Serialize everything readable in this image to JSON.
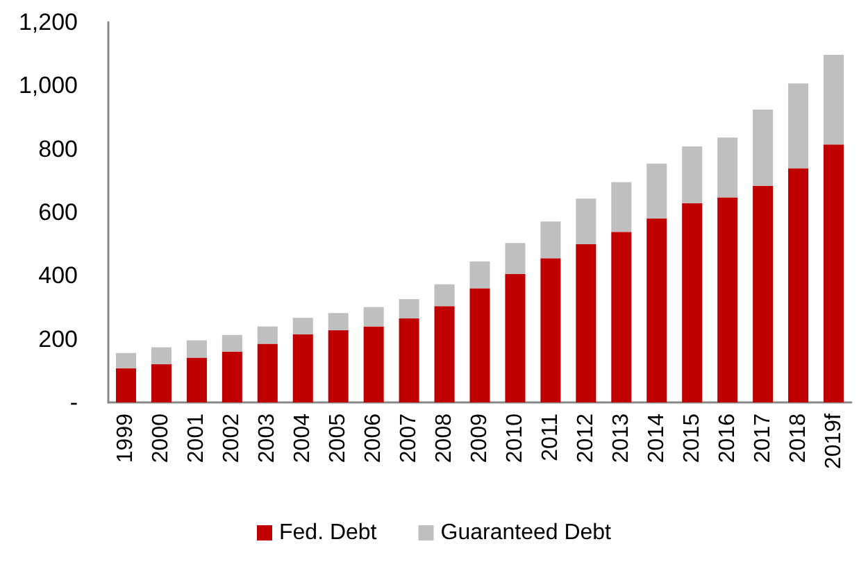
{
  "chart_data": {
    "type": "bar",
    "stacked": true,
    "categories": [
      "1999",
      "2000",
      "2001",
      "2002",
      "2003",
      "2004",
      "2005",
      "2006",
      "2007",
      "2008",
      "2009",
      "2010",
      "2011",
      "2012",
      "2013",
      "2014",
      "2015",
      "2016",
      "2017",
      "2018",
      "2019f"
    ],
    "series": [
      {
        "name": "Fed. Debt",
        "color": "#c00000",
        "values": [
          108,
          121,
          141,
          160,
          185,
          215,
          228,
          240,
          265,
          304,
          360,
          405,
          455,
          499,
          538,
          581,
          629,
          647,
          684,
          739,
          814
        ]
      },
      {
        "name": "Guaranteed Debt",
        "color": "#bfbfbf",
        "values": [
          48,
          53,
          55,
          53,
          55,
          52,
          54,
          61,
          61,
          69,
          85,
          98,
          116,
          144,
          157,
          173,
          179,
          189,
          240,
          268,
          283
        ]
      }
    ],
    "ylim": [
      0,
      1200
    ],
    "yticks": [
      {
        "value": 0,
        "label": "-"
      },
      200,
      400,
      600,
      800,
      {
        "value": 1000,
        "label": "1,000"
      },
      {
        "value": 1200,
        "label": "1,200"
      }
    ],
    "grid": false,
    "legend": "bottom"
  }
}
